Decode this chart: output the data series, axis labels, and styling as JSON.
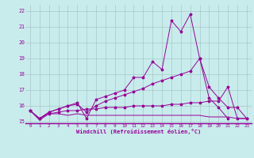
{
  "bg_color": "#c8ecec",
  "line_color": "#990099",
  "grid_color": "#9fbfbf",
  "ylim": [
    14.9,
    22.4
  ],
  "xlim": [
    -0.5,
    23.5
  ],
  "yticks": [
    15,
    16,
    17,
    18,
    19,
    20,
    21,
    22
  ],
  "xticks": [
    0,
    1,
    2,
    3,
    4,
    5,
    6,
    7,
    8,
    9,
    10,
    11,
    12,
    13,
    14,
    15,
    16,
    17,
    18,
    19,
    20,
    21,
    22,
    23
  ],
  "xlabel": "Windchill (Refroidissement éolien,°C)",
  "line1_x": [
    0,
    1,
    2,
    3,
    4,
    5,
    6,
    7,
    8,
    9,
    10,
    11,
    12,
    13,
    14,
    15,
    16,
    17,
    18,
    19,
    20,
    21
  ],
  "line1_y": [
    15.7,
    15.2,
    15.6,
    15.8,
    16.0,
    16.2,
    15.2,
    16.4,
    16.6,
    16.8,
    17.0,
    17.8,
    17.8,
    18.8,
    18.3,
    21.4,
    20.7,
    21.8,
    19.0,
    16.5,
    15.9,
    15.2
  ],
  "line2_x": [
    0,
    1,
    2,
    3,
    4,
    5,
    6,
    7,
    8,
    9,
    10,
    11,
    12,
    13,
    14,
    15,
    16,
    17,
    18,
    19,
    20,
    21,
    22,
    23
  ],
  "line2_y": [
    15.7,
    15.2,
    15.6,
    15.8,
    16.0,
    16.1,
    15.6,
    16.0,
    16.3,
    16.5,
    16.7,
    16.9,
    17.1,
    17.4,
    17.6,
    17.8,
    18.0,
    18.2,
    19.0,
    17.2,
    16.5,
    15.9,
    15.9,
    15.2
  ],
  "line3_x": [
    0,
    1,
    2,
    3,
    4,
    5,
    6,
    7,
    8,
    9,
    10,
    11,
    12,
    13,
    14,
    15,
    16,
    17,
    18,
    19,
    20,
    21,
    22,
    23
  ],
  "line3_y": [
    15.7,
    15.2,
    15.5,
    15.6,
    15.7,
    15.7,
    15.8,
    15.8,
    15.9,
    15.9,
    15.9,
    16.0,
    16.0,
    16.0,
    16.0,
    16.1,
    16.1,
    16.2,
    16.2,
    16.3,
    16.3,
    17.2,
    15.2,
    15.2
  ],
  "line4_x": [
    0,
    1,
    2,
    3,
    4,
    5,
    6,
    7,
    8,
    9,
    10,
    11,
    12,
    13,
    14,
    15,
    16,
    17,
    18,
    19,
    20,
    21,
    22,
    23
  ],
  "line4_y": [
    15.7,
    15.1,
    15.5,
    15.5,
    15.4,
    15.5,
    15.4,
    15.4,
    15.4,
    15.4,
    15.4,
    15.4,
    15.4,
    15.4,
    15.4,
    15.4,
    15.4,
    15.4,
    15.4,
    15.3,
    15.3,
    15.3,
    15.2,
    15.2
  ]
}
